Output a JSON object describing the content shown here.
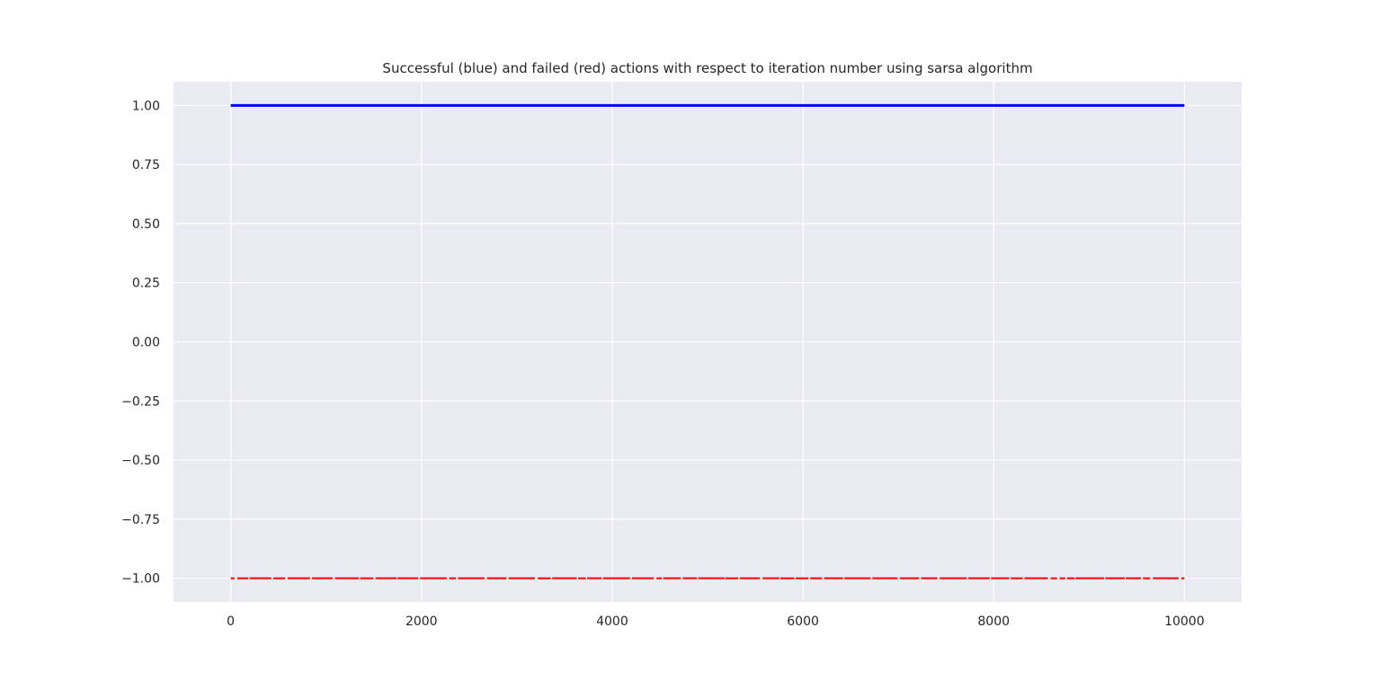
{
  "chart_data": {
    "type": "scatter",
    "title": "Successful (blue) and failed (red) actions with respect to iteration number using sarsa algorithm",
    "xlabel": "",
    "ylabel": "",
    "xlim": [
      -600,
      10600
    ],
    "ylim": [
      -1.1,
      1.1
    ],
    "x_ticks": [
      0,
      2000,
      4000,
      6000,
      8000,
      10000
    ],
    "y_ticks": [
      1.0,
      0.75,
      0.5,
      0.25,
      0.0,
      -0.25,
      -0.5,
      -0.75,
      -1.0
    ],
    "x_tick_labels": [
      "0",
      "2000",
      "4000",
      "6000",
      "8000",
      "10000"
    ],
    "y_tick_labels": [
      "1.00",
      "0.75",
      "0.50",
      "0.25",
      "0.00",
      "−0.25",
      "−0.50",
      "−0.75",
      "−1.00"
    ],
    "grid": true,
    "series": [
      {
        "color": "#0000ff",
        "y": 1,
        "x_range": [
          0,
          10000
        ],
        "coverage": "continuous"
      },
      {
        "color": "#ff0000",
        "y": -1,
        "x_range": [
          0,
          10000
        ],
        "coverage": "dense, intermittent"
      }
    ],
    "colors": {
      "plot_background": "#eaeaf2",
      "grid": "#ffffff",
      "success": "#0000ff",
      "failure": "#ff0000"
    }
  }
}
